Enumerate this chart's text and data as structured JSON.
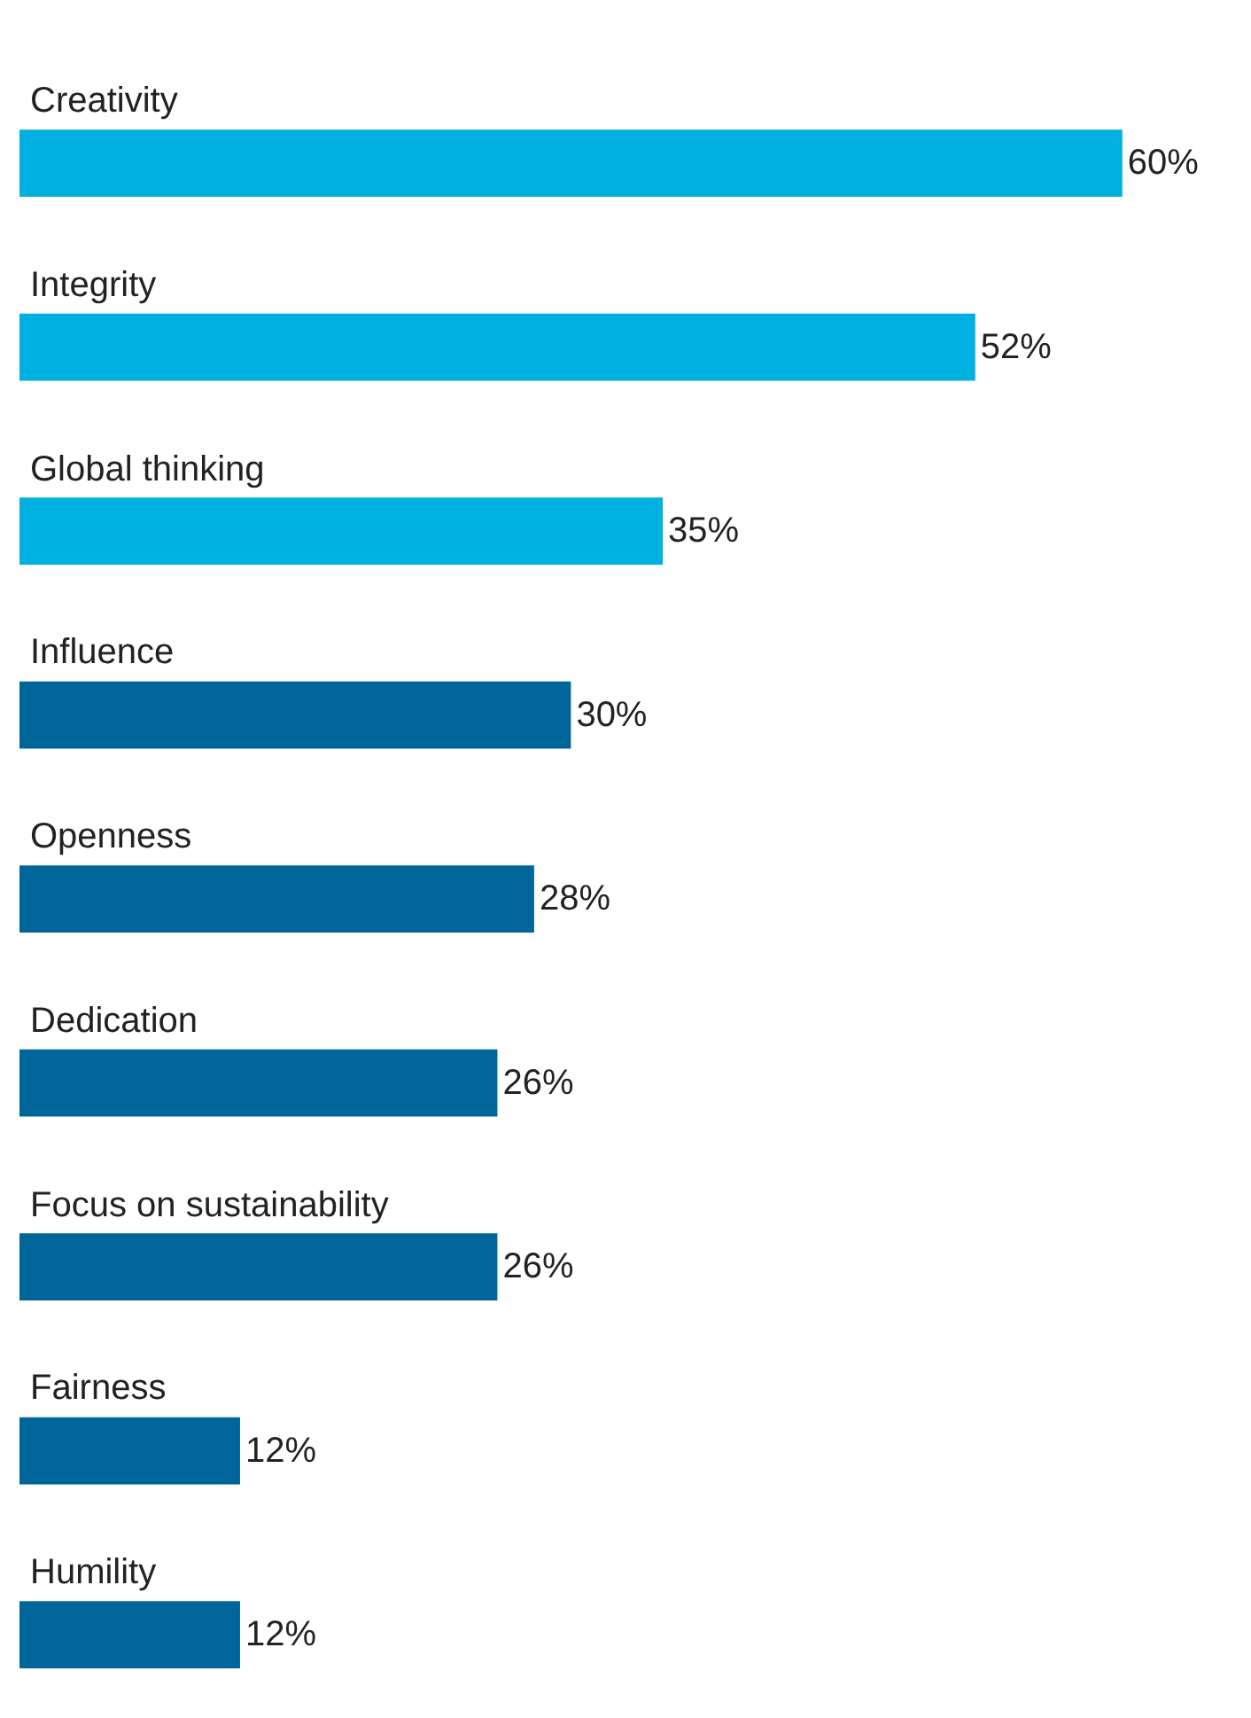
{
  "chart_data": {
    "type": "bar",
    "orientation": "horizontal",
    "categories": [
      "Creativity",
      "Integrity",
      "Global thinking",
      "Influence",
      "Openness",
      "Dedication",
      "Focus on sustainability",
      "Fairness",
      "Humility"
    ],
    "values": [
      60,
      52,
      35,
      30,
      28,
      26,
      26,
      12,
      12
    ],
    "colors": [
      "#00b0e0",
      "#00b0e0",
      "#00b0e0",
      "#006699",
      "#006699",
      "#006699",
      "#006699",
      "#006699",
      "#006699"
    ],
    "value_labels": [
      "60%",
      "52%",
      "35%",
      "30%",
      "28%",
      "26%",
      "26%",
      "12%",
      "12%"
    ],
    "xlim": [
      0,
      67
    ],
    "tick_labels": false
  }
}
